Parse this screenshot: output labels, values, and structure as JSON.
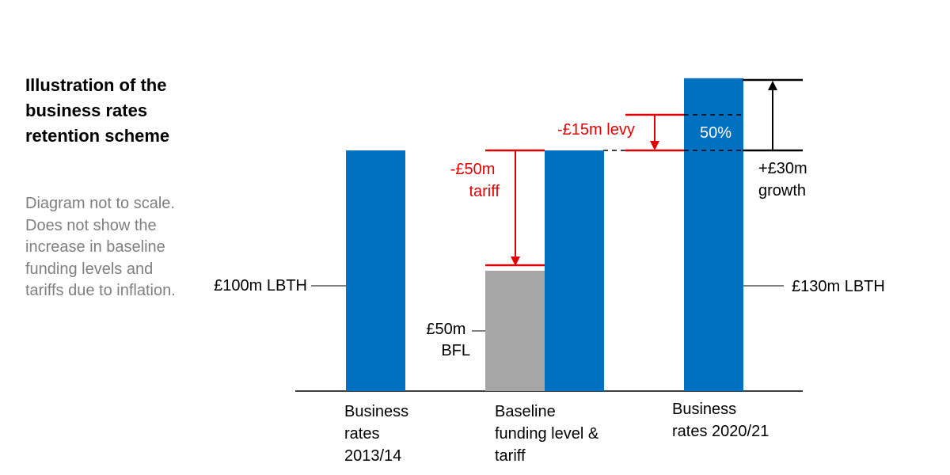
{
  "sidebar": {
    "title": "Illustration of the business rates retention scheme",
    "note": "Diagram not to scale. Does not show the increase in baseline funding levels and tariffs due to inflation."
  },
  "chart_data": {
    "type": "bar",
    "title": "Illustration of the business rates retention scheme",
    "colors": {
      "business_rates": "#0070c0",
      "bfl": "#a6a6a6",
      "tariff_levy": "#e00000",
      "axis": "#000000"
    },
    "categories": [
      {
        "label_lines": [
          "Business",
          "rates",
          "2013/14"
        ]
      },
      {
        "label_lines": [
          "Baseline",
          "funding level &",
          "tariff"
        ]
      },
      {
        "label_lines": [
          "Business",
          "rates 2020/21"
        ]
      }
    ],
    "bars": [
      {
        "category": 0,
        "kind": "business_rates",
        "value": 100
      },
      {
        "category": 1,
        "kind": "bfl",
        "value": 50
      },
      {
        "category": 1,
        "kind": "business_rates",
        "value": 100
      },
      {
        "category": 2,
        "kind": "business_rates",
        "value": 130
      }
    ],
    "annotations": {
      "lbth_2013": "£100m LBTH",
      "lbth_2020": "£130m LBTH",
      "bfl_lines": [
        "£50m",
        "BFL"
      ],
      "tariff_lines": [
        "-£50m",
        "tariff"
      ],
      "levy": "-£15m levy",
      "share": "50%",
      "growth_lines": [
        "+£30m",
        "growth"
      ]
    },
    "values": {
      "tariff": -50,
      "levy": -15,
      "growth": 30,
      "retained_share_percent": 50
    }
  }
}
